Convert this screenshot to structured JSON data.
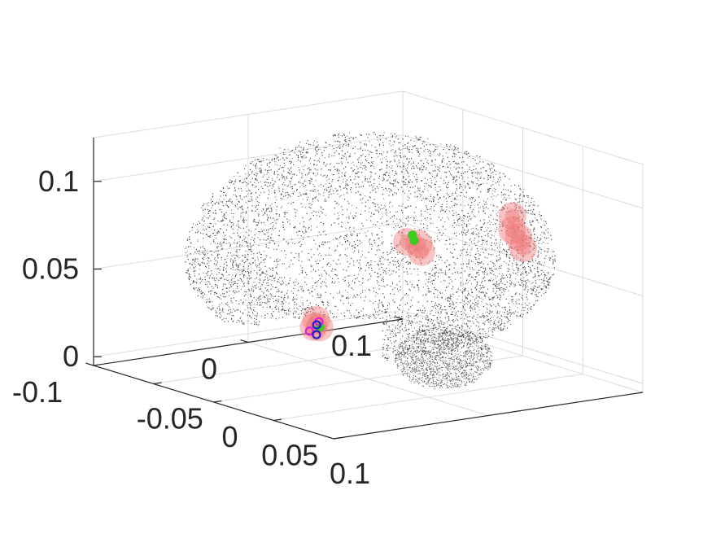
{
  "chart_data": {
    "type": "scatter",
    "projection": "3d",
    "grid": true,
    "title": "",
    "xlabel": "",
    "ylabel": "",
    "zlabel": "",
    "axes": {
      "x": {
        "range": [
          -0.1,
          0.1
        ],
        "ticks": [
          -0.05,
          0,
          0.05,
          0.1
        ],
        "tick_labels": [
          "-0.05",
          "0",
          "0.05",
          "0.1"
        ]
      },
      "y": {
        "range": [
          -0.1,
          0.1
        ],
        "ticks": [
          -0.1,
          0,
          0.1
        ],
        "tick_labels": [
          "-0.1",
          "0",
          "0.1"
        ]
      },
      "z": {
        "range": [
          -0.005,
          0.125
        ],
        "ticks": [
          0,
          0.05,
          0.1
        ],
        "tick_labels": [
          "0",
          "0.05",
          "0.1"
        ]
      }
    },
    "colors": {
      "cloud": "#333333",
      "activation": "#f07a7a",
      "green_marker": "#3ccc1e",
      "blue_marker": "#1b1bd6",
      "magenta_marker": "#d81ed8"
    },
    "series": [
      {
        "role": "brain-surface-points",
        "marker": "dot",
        "points": []
      },
      {
        "role": "activation-clusters",
        "marker": "blob",
        "points": [
          [
            0.03,
            0.07,
            0.085
          ],
          [
            0.04,
            0.062,
            0.08
          ],
          [
            0.048,
            0.06,
            0.078
          ],
          [
            0.044,
            0.066,
            0.07
          ],
          [
            0.055,
            -0.01,
            0.085
          ],
          [
            0.065,
            -0.016,
            0.083
          ],
          [
            0.058,
            -0.02,
            0.088
          ],
          [
            0.07,
            -0.088,
            0.055
          ],
          [
            0.073,
            -0.092,
            0.052
          ],
          [
            0.069,
            -0.085,
            0.05
          ]
        ]
      },
      {
        "role": "green-markers",
        "marker": "circle-filled",
        "points": [
          [
            0.06,
            -0.018,
            0.092
          ],
          [
            0.064,
            -0.02,
            0.09
          ],
          [
            0.068,
            -0.084,
            0.05
          ]
        ]
      },
      {
        "role": "blue-markers",
        "marker": "circle-open",
        "points": [
          [
            0.073,
            -0.09,
            0.053
          ],
          [
            0.078,
            -0.094,
            0.049
          ]
        ]
      },
      {
        "role": "magenta-markers",
        "marker": "circle-open",
        "points": [
          [
            0.071,
            -0.087,
            0.054
          ],
          [
            0.076,
            -0.097,
            0.051
          ]
        ]
      }
    ]
  }
}
